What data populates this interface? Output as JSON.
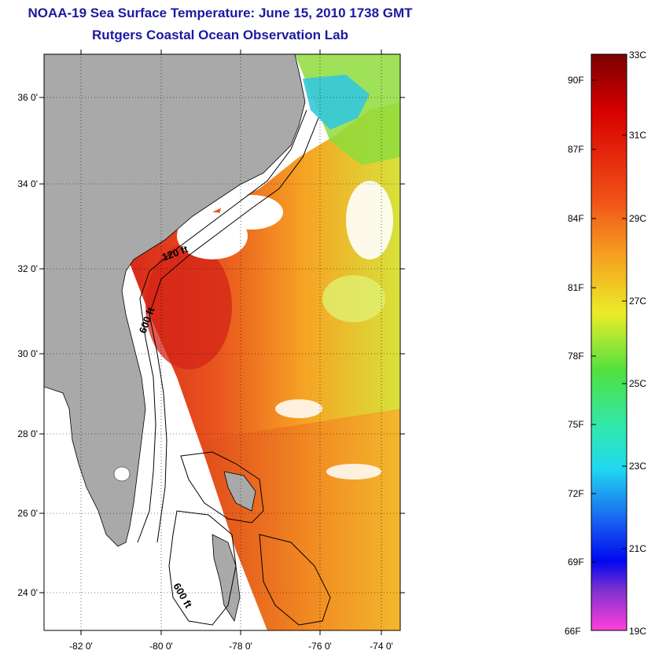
{
  "title_line1": "NOAA-19 Sea Surface Temperature:  June 15, 2010 1738 GMT",
  "title_line2": "Rutgers Coastal Ocean Observation Lab",
  "map": {
    "lat_labels": [
      "36 0'",
      "34 0'",
      "32 0'",
      "30 0'",
      "28 0'",
      "26 0'",
      "24 0'"
    ],
    "lon_labels": [
      "-82 0'",
      "-80 0'",
      "-78 0'",
      "-76 0'",
      "-74 0'"
    ],
    "contour_labels": [
      "120 ft",
      "600 ft",
      "600 ft"
    ],
    "colors": {
      "land": "#a9a9a9",
      "warm": "#e8401c",
      "hot": "#d8201a",
      "mid": "#f08a22",
      "cool": "#c8e832",
      "cold": "#38c8e0"
    }
  },
  "colorbar": {
    "f_labels": [
      "90F",
      "87F",
      "84F",
      "81F",
      "78F",
      "75F",
      "72F",
      "69F",
      "66F"
    ],
    "c_labels": [
      "33C",
      "31C",
      "29C",
      "27C",
      "25C",
      "23C",
      "21C",
      "19C"
    ]
  }
}
